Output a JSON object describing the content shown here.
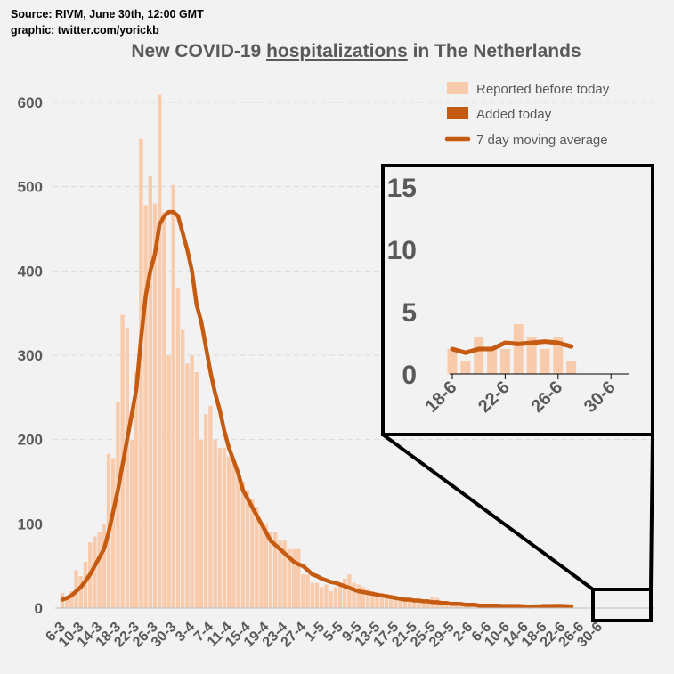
{
  "source_line": "Source: RIVM, June 30th, 12:00  GMT",
  "graphic_line": "graphic: twitter.com/yorickb",
  "title_pre": "New COVID-19 ",
  "title_main": "hospitalizations",
  "title_post": " in The Netherlands",
  "colors": {
    "bar": "#f8cbad",
    "added": "#c55a11",
    "avg": "#c55a11",
    "axis_text": "#595959",
    "frame": "#000000"
  },
  "chart_data": {
    "type": "bar",
    "start_date": "6-3",
    "xtick_labels": [
      "6-3",
      "10-3",
      "14-3",
      "18-3",
      "22-3",
      "26-3",
      "30-3",
      "3-4",
      "7-4",
      "11-4",
      "15-4",
      "19-4",
      "23-4",
      "27-4",
      "1-5",
      "5-5",
      "9-5",
      "13-5",
      "17-5",
      "21-5",
      "25-5",
      "29-5",
      "2-6",
      "6-6",
      "10-6",
      "14-6",
      "18-6",
      "22-6",
      "26-6",
      "30-6"
    ],
    "yticks": [
      0,
      100,
      200,
      300,
      400,
      500,
      600
    ],
    "ylim": [
      0,
      650
    ],
    "legend": [
      "Reported before today",
      "Added today",
      "7 day moving average"
    ],
    "series": [
      {
        "name": "Reported before today",
        "values": [
          18,
          12,
          20,
          45,
          38,
          55,
          78,
          85,
          90,
          100,
          183,
          178,
          245,
          348,
          333,
          200,
          280,
          557,
          478,
          512,
          480,
          609,
          470,
          300,
          502,
          380,
          330,
          290,
          300,
          280,
          200,
          230,
          240,
          200,
          190,
          190,
          180,
          170,
          160,
          150,
          140,
          130,
          120,
          100,
          100,
          90,
          90,
          80,
          80,
          70,
          70,
          70,
          40,
          40,
          30,
          30,
          25,
          28,
          20,
          25,
          28,
          35,
          40,
          30,
          28,
          25,
          22,
          20,
          18,
          18,
          17,
          16,
          15,
          13,
          12,
          10,
          10,
          9,
          8,
          10,
          14,
          12,
          8,
          6,
          6,
          5,
          5,
          4,
          4,
          4,
          4,
          3,
          3,
          2,
          3,
          2,
          2,
          1,
          2,
          2,
          1,
          3,
          2,
          4,
          2,
          2,
          3,
          2,
          3,
          1,
          0
        ]
      },
      {
        "name": "7 day moving average",
        "values": [
          10,
          12,
          15,
          20,
          25,
          32,
          40,
          50,
          60,
          70,
          90,
          115,
          140,
          170,
          200,
          230,
          260,
          320,
          370,
          400,
          420,
          455,
          465,
          470,
          470,
          465,
          445,
          425,
          400,
          360,
          340,
          310,
          280,
          255,
          235,
          210,
          190,
          175,
          160,
          140,
          130,
          120,
          110,
          100,
          90,
          80,
          75,
          70,
          65,
          60,
          55,
          52,
          50,
          45,
          40,
          38,
          35,
          33,
          31,
          30,
          28,
          26,
          24,
          22,
          20,
          19,
          18,
          17,
          16,
          15,
          14,
          13,
          12,
          11,
          10,
          10,
          9,
          9,
          8,
          8,
          7,
          7,
          6,
          6,
          5,
          5,
          5,
          4,
          4,
          4,
          3,
          3,
          3,
          3,
          3,
          2.5,
          2.5,
          2.5,
          2.5,
          2.3,
          2,
          1.7,
          2,
          2,
          2.5,
          2.4,
          2.5,
          2.6,
          2.5,
          2.2,
          2
        ]
      }
    ]
  },
  "inset": {
    "yticks": [
      0,
      5,
      10,
      15
    ],
    "ylim": [
      0,
      15
    ],
    "xtick_labels": [
      "18-6",
      "22-6",
      "26-6",
      "30-6"
    ],
    "bars": [
      2,
      1,
      3,
      2,
      2,
      4,
      3,
      2,
      3,
      1,
      0,
      0,
      0
    ],
    "avg": [
      2,
      1.7,
      2,
      2,
      2.5,
      2.4,
      2.5,
      2.6,
      2.5,
      2.2
    ]
  }
}
